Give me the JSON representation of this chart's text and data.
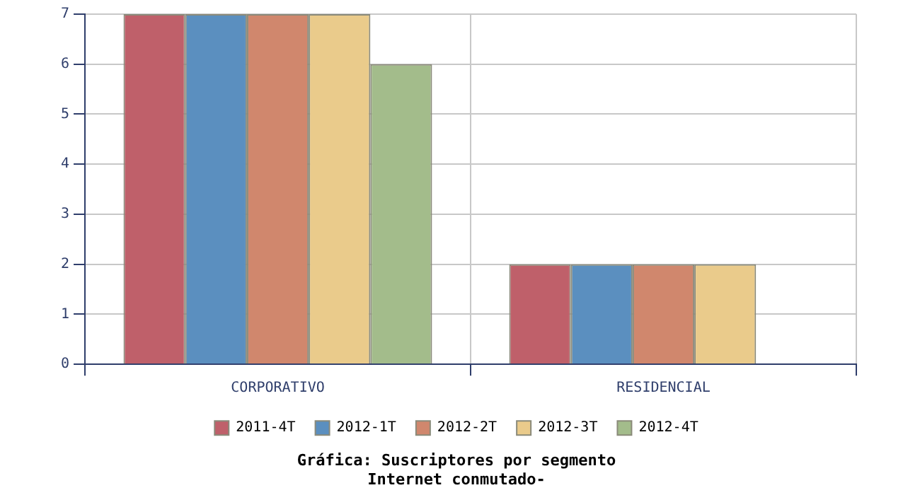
{
  "chart_data": {
    "type": "bar",
    "title": "Gráfica: Suscriptores por segmento",
    "subtitle": "Internet conmutado-",
    "categories": [
      "CORPORATIVO",
      "RESIDENCIAL"
    ],
    "series": [
      {
        "name": "2011-4T",
        "color": "#bf606a",
        "values": [
          7,
          2
        ]
      },
      {
        "name": "2012-1T",
        "color": "#5b8fbf",
        "values": [
          7,
          2
        ]
      },
      {
        "name": "2012-2T",
        "color": "#d0876d",
        "values": [
          7,
          2
        ]
      },
      {
        "name": "2012-3T",
        "color": "#eacb8b",
        "values": [
          7,
          2
        ]
      },
      {
        "name": "2012-4T",
        "color": "#a3bc8b",
        "values": [
          6,
          null
        ]
      }
    ],
    "ylim": [
      0,
      7
    ],
    "yticks": [
      0,
      1,
      2,
      3,
      4,
      5,
      6,
      7
    ],
    "grid": true,
    "legend": "bottom"
  }
}
